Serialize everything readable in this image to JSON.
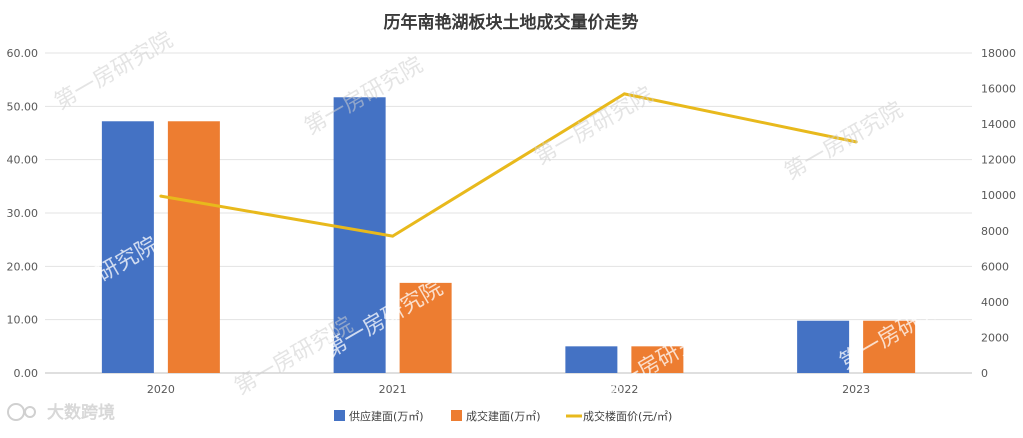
{
  "chart_data": {
    "type": "bar",
    "title": "历年南艳湖板块土地成交量价走势",
    "categories": [
      "2020",
      "2021",
      "2022",
      "2023"
    ],
    "series": [
      {
        "name": "供应建面(万㎡)",
        "kind": "bar",
        "axis": "left",
        "color": "#4472C4",
        "values": [
          47.2,
          51.7,
          5.0,
          9.8
        ]
      },
      {
        "name": "成交建面(万㎡)",
        "kind": "bar",
        "axis": "left",
        "color": "#ED7D31",
        "values": [
          47.2,
          16.9,
          5.0,
          9.8
        ]
      },
      {
        "name": "成交楼面价(元/㎡)",
        "kind": "line",
        "axis": "right",
        "color": "#E8B91C",
        "values": [
          9950,
          7700,
          15700,
          13000
        ]
      }
    ],
    "y_left": {
      "min": 0,
      "max": 60,
      "ticks": [
        "0.00",
        "10.00",
        "20.00",
        "30.00",
        "40.00",
        "50.00",
        "60.00"
      ]
    },
    "y_right": {
      "min": 0,
      "max": 18000,
      "ticks": [
        "0",
        "2000",
        "4000",
        "6000",
        "8000",
        "10000",
        "12000",
        "14000",
        "16000",
        "18000"
      ]
    },
    "grid": true,
    "legend": "bottom"
  },
  "watermark": "第一房研究院",
  "brand": {
    "text": "大数跨境",
    "icon": "brand-logo-icon"
  }
}
